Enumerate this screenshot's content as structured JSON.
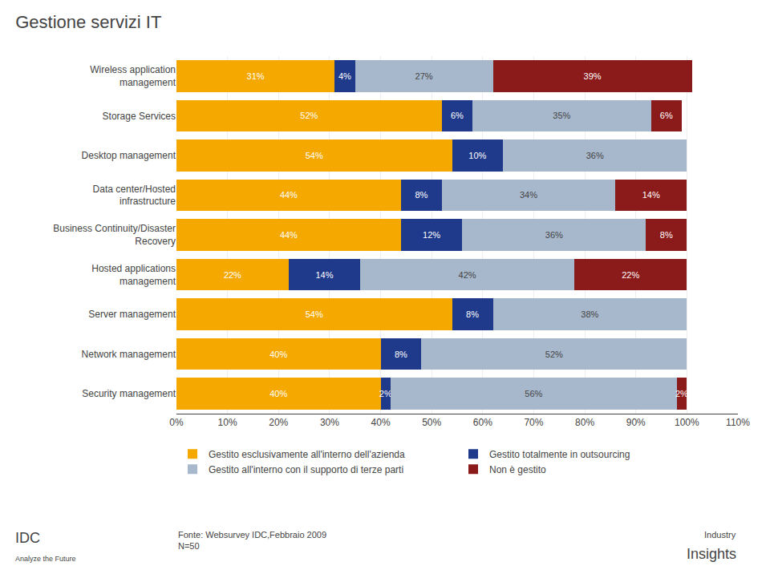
{
  "chart_data": {
    "type": "bar",
    "orientation": "horizontal",
    "stacked": true,
    "title": "Gestione servizi IT",
    "categories": [
      "Wireless application\nmanagement",
      "Storage Services",
      "Desktop management",
      "Data center/Hosted\ninfrastructure",
      "Business Continuity/Disaster\nRecovery",
      "Hosted applications\nmanagement",
      "Server management",
      "Network management",
      "Security management"
    ],
    "series": [
      {
        "name": "Gestito esclusivamente all'interno dell'azienda",
        "color": "#F5A800",
        "values": [
          31,
          52,
          54,
          44,
          44,
          22,
          54,
          40,
          40
        ],
        "value_labels": [
          "31%",
          "52%",
          "54%",
          "44%",
          "44%",
          "22%",
          "54%",
          "40%",
          "40%"
        ]
      },
      {
        "name": "Gestito totalmente in outsourcing",
        "color": "#1F3A8A",
        "values": [
          4,
          6,
          10,
          8,
          12,
          14,
          8,
          8,
          2
        ],
        "value_labels": [
          "4%",
          "6%",
          "10%",
          "8%",
          "12%",
          "14%",
          "8%",
          "8%",
          "2%"
        ]
      },
      {
        "name": "Gestito all'interno con il supporto di terze parti",
        "color": "#A8B8CC",
        "values": [
          27,
          35,
          36,
          34,
          36,
          42,
          38,
          52,
          56
        ],
        "value_labels": [
          "27%",
          "35%",
          "36%",
          "34%",
          "36%",
          "42%",
          "38%",
          "52%",
          "56%"
        ]
      },
      {
        "name": "Non è gestito",
        "color": "#8B1A1A",
        "values": [
          39,
          6,
          0,
          14,
          8,
          22,
          0,
          0,
          2
        ],
        "value_labels": [
          "39%",
          "6%",
          null,
          "14%",
          "8%",
          "22%",
          null,
          null,
          "2%"
        ]
      }
    ],
    "xlim": [
      0,
      110
    ],
    "xticks": [
      {
        "value": 0,
        "label": "0%"
      },
      {
        "value": 10,
        "label": "10%"
      },
      {
        "value": 20,
        "label": "20%"
      },
      {
        "value": 30,
        "label": "30%"
      },
      {
        "value": 40,
        "label": "40%"
      },
      {
        "value": 50,
        "label": "50%"
      },
      {
        "value": 60,
        "label": "60%"
      },
      {
        "value": 70,
        "label": "70%"
      },
      {
        "value": 80,
        "label": "80%"
      },
      {
        "value": 90,
        "label": "90%"
      },
      {
        "value": 100,
        "label": "100%"
      },
      {
        "value": 110,
        "label": "110%"
      }
    ],
    "grid": true,
    "data_labels": true,
    "legend": "bottom",
    "annotations": [
      "Fonte: Websurvey IDC,Febbraio 2009\nN=50",
      "IDC",
      "Analyze the Future",
      "Industry",
      "Insights"
    ]
  }
}
